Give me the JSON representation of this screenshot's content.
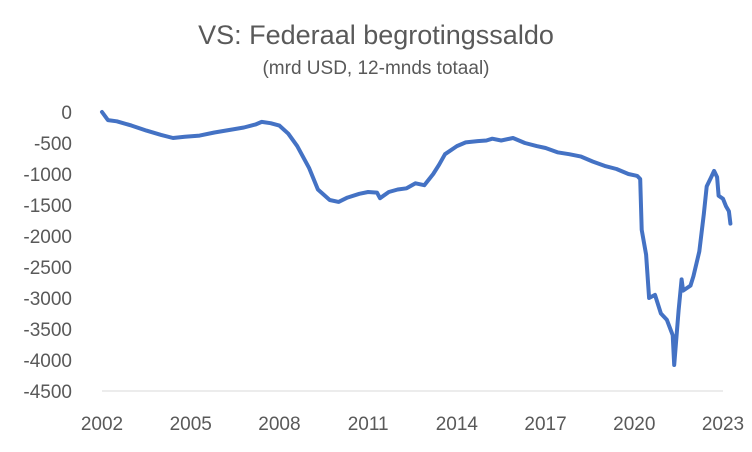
{
  "chart_data": {
    "type": "line",
    "title": "VS: Federaal begrotingssaldo",
    "subtitle": "(mrd USD, 12-mnds totaal)",
    "xlabel": "",
    "ylabel": "",
    "x_ticks": [
      "2002",
      "2005",
      "2008",
      "2011",
      "2014",
      "2017",
      "2020",
      "2023"
    ],
    "y_ticks": [
      "0",
      "-500",
      "-1000",
      "-1500",
      "-2000",
      "-2500",
      "-3000",
      "-3500",
      "-4000",
      "-4500"
    ],
    "xlim": [
      2002,
      2023
    ],
    "ylim": [
      -4500,
      0
    ],
    "grid": false,
    "legend": "none",
    "series": [
      {
        "color": "#4472C4",
        "points": [
          [
            2002.0,
            0
          ],
          [
            2002.2,
            -130
          ],
          [
            2002.5,
            -150
          ],
          [
            2003.0,
            -220
          ],
          [
            2003.5,
            -300
          ],
          [
            2004.0,
            -370
          ],
          [
            2004.4,
            -420
          ],
          [
            2004.8,
            -400
          ],
          [
            2005.3,
            -380
          ],
          [
            2005.8,
            -330
          ],
          [
            2006.3,
            -290
          ],
          [
            2006.8,
            -250
          ],
          [
            2007.2,
            -200
          ],
          [
            2007.4,
            -160
          ],
          [
            2007.7,
            -180
          ],
          [
            2008.0,
            -220
          ],
          [
            2008.3,
            -350
          ],
          [
            2008.6,
            -550
          ],
          [
            2009.0,
            -900
          ],
          [
            2009.3,
            -1250
          ],
          [
            2009.7,
            -1420
          ],
          [
            2010.0,
            -1450
          ],
          [
            2010.3,
            -1380
          ],
          [
            2010.7,
            -1320
          ],
          [
            2011.0,
            -1290
          ],
          [
            2011.3,
            -1300
          ],
          [
            2011.4,
            -1390
          ],
          [
            2011.7,
            -1290
          ],
          [
            2012.0,
            -1250
          ],
          [
            2012.3,
            -1230
          ],
          [
            2012.6,
            -1150
          ],
          [
            2012.9,
            -1180
          ],
          [
            2013.2,
            -1000
          ],
          [
            2013.4,
            -850
          ],
          [
            2013.6,
            -680
          ],
          [
            2014.0,
            -550
          ],
          [
            2014.3,
            -490
          ],
          [
            2014.7,
            -470
          ],
          [
            2015.0,
            -460
          ],
          [
            2015.2,
            -430
          ],
          [
            2015.5,
            -460
          ],
          [
            2015.9,
            -420
          ],
          [
            2016.3,
            -500
          ],
          [
            2016.7,
            -550
          ],
          [
            2017.0,
            -580
          ],
          [
            2017.4,
            -650
          ],
          [
            2017.8,
            -680
          ],
          [
            2018.2,
            -720
          ],
          [
            2018.6,
            -800
          ],
          [
            2019.0,
            -870
          ],
          [
            2019.4,
            -920
          ],
          [
            2019.8,
            -1000
          ],
          [
            2020.1,
            -1030
          ],
          [
            2020.2,
            -1080
          ],
          [
            2020.25,
            -1900
          ],
          [
            2020.4,
            -2300
          ],
          [
            2020.5,
            -3000
          ],
          [
            2020.7,
            -2950
          ],
          [
            2020.9,
            -3250
          ],
          [
            2021.1,
            -3350
          ],
          [
            2021.3,
            -3600
          ],
          [
            2021.35,
            -4080
          ],
          [
            2021.5,
            -3200
          ],
          [
            2021.6,
            -2700
          ],
          [
            2021.65,
            -2880
          ],
          [
            2021.9,
            -2800
          ],
          [
            2022.0,
            -2650
          ],
          [
            2022.2,
            -2250
          ],
          [
            2022.35,
            -1650
          ],
          [
            2022.45,
            -1200
          ],
          [
            2022.6,
            -1050
          ],
          [
            2022.7,
            -950
          ],
          [
            2022.8,
            -1050
          ],
          [
            2022.85,
            -1350
          ],
          [
            2023.0,
            -1400
          ],
          [
            2023.1,
            -1520
          ],
          [
            2023.2,
            -1600
          ],
          [
            2023.25,
            -1800
          ]
        ]
      }
    ]
  }
}
